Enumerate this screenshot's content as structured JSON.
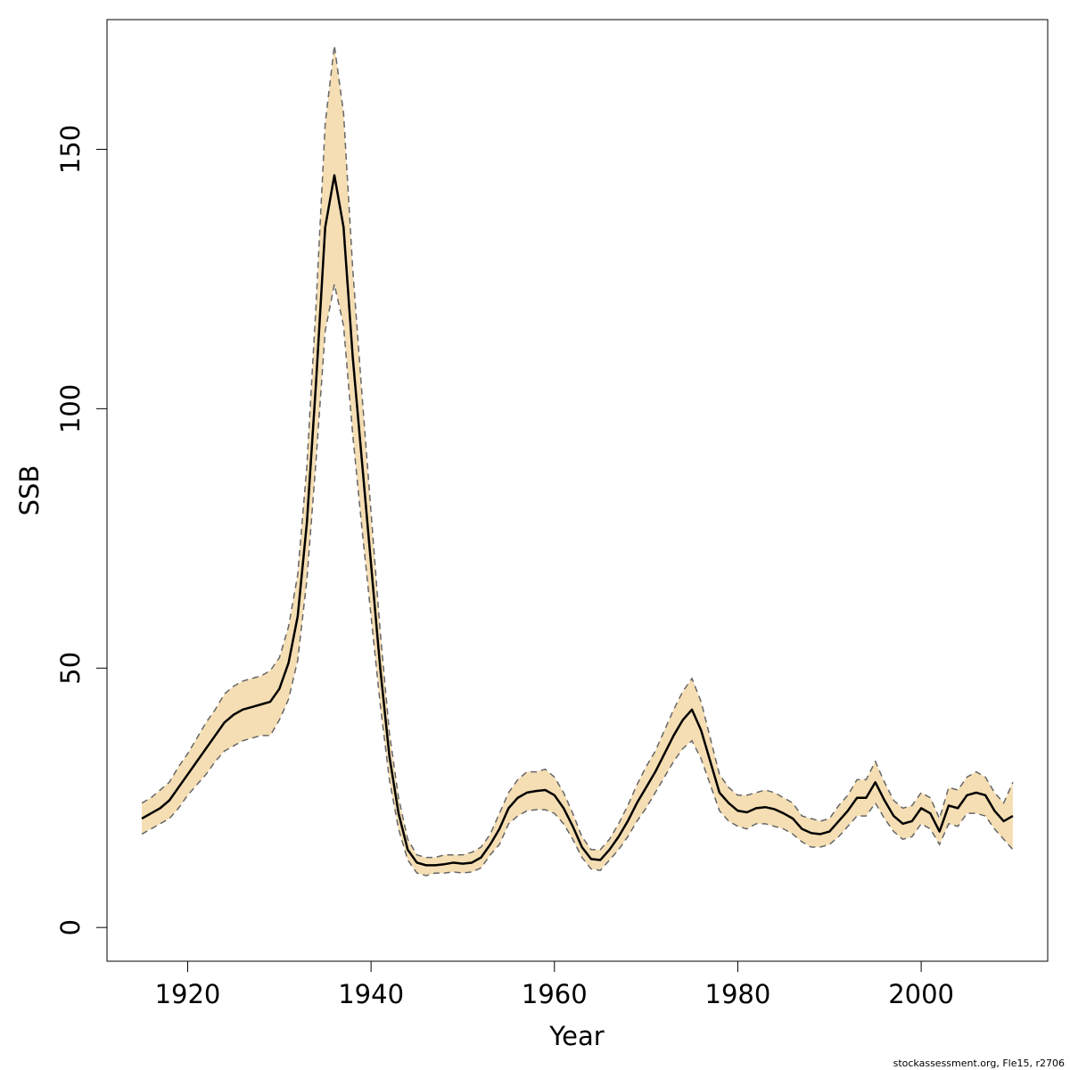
{
  "chart_data": {
    "type": "line",
    "xlabel": "Year",
    "ylabel": "SSB",
    "footer": "stockassessment.org, Fle15, r2706",
    "xlim": [
      1911.2,
      2013.8
    ],
    "ylim": [
      -6.5,
      175
    ],
    "xticks": [
      1920,
      1940,
      1960,
      1980,
      2000
    ],
    "yticks": [
      0,
      50,
      100,
      150
    ],
    "x": [
      1915,
      1916,
      1917,
      1918,
      1919,
      1920,
      1921,
      1922,
      1923,
      1924,
      1925,
      1926,
      1927,
      1928,
      1929,
      1930,
      1931,
      1932,
      1933,
      1934,
      1935,
      1936,
      1937,
      1938,
      1939,
      1940,
      1941,
      1942,
      1943,
      1944,
      1945,
      1946,
      1947,
      1948,
      1949,
      1950,
      1951,
      1952,
      1953,
      1954,
      1955,
      1956,
      1957,
      1958,
      1959,
      1960,
      1961,
      1962,
      1963,
      1964,
      1965,
      1966,
      1967,
      1968,
      1969,
      1970,
      1971,
      1972,
      1973,
      1974,
      1975,
      1976,
      1977,
      1978,
      1979,
      1980,
      1981,
      1982,
      1983,
      1984,
      1985,
      1986,
      1987,
      1988,
      1989,
      1990,
      1991,
      1992,
      1993,
      1994,
      1995,
      1996,
      1997,
      1998,
      1999,
      2000,
      2001,
      2002,
      2003,
      2004,
      2005,
      2006,
      2007,
      2008,
      2009,
      2010
    ],
    "series": [
      {
        "color": "#000000",
        "values": [
          21,
          22,
          23,
          24.5,
          27,
          29.5,
          32,
          34.5,
          37,
          39.5,
          41,
          42,
          42.5,
          43,
          43.5,
          46,
          51,
          60,
          78,
          105,
          135,
          145,
          135,
          110,
          90,
          70,
          50,
          33,
          22,
          15,
          12.5,
          12,
          12,
          12.2,
          12.5,
          12.3,
          12.5,
          13.5,
          16,
          19,
          23,
          25,
          26,
          26.3,
          26.5,
          25.5,
          23,
          19.5,
          15.5,
          13.2,
          13,
          15,
          17.5,
          20.5,
          24,
          27,
          30,
          33.5,
          37,
          40,
          42,
          38,
          32,
          26,
          24,
          22.5,
          22.2,
          23,
          23.2,
          22.8,
          22,
          21,
          19,
          18.2,
          18,
          18.5,
          20.5,
          22.5,
          25,
          25,
          28,
          24.5,
          21.5,
          20,
          20.5,
          23,
          22,
          18.5,
          23.5,
          23,
          25.5,
          26,
          25.5,
          22.5,
          20.5,
          21.5
        ]
      }
    ],
    "band": {
      "color": "#f5deb3",
      "line_color": "#666666",
      "upper": [
        24,
        25,
        26.5,
        28,
        31,
        33.5,
        36.5,
        39.5,
        42,
        45,
        46.5,
        47.5,
        48,
        48.5,
        49.5,
        52,
        58,
        68,
        89,
        120,
        155,
        170,
        157,
        127,
        103,
        80,
        57,
        37.5,
        25,
        17,
        14,
        13.5,
        13.5,
        14,
        14,
        14,
        14.5,
        15.5,
        18,
        22,
        26,
        28.5,
        30,
        30,
        30.5,
        29,
        26,
        22,
        17.5,
        15,
        15,
        17,
        20,
        23.5,
        27.5,
        31,
        34,
        38,
        42,
        45.5,
        48,
        43.5,
        36.5,
        29.5,
        27,
        25.5,
        25.5,
        26,
        26.5,
        26,
        25,
        24,
        21.5,
        21,
        20.5,
        21,
        23.5,
        25.5,
        28.5,
        28.5,
        32,
        28,
        24.5,
        23,
        23.5,
        26,
        25,
        21,
        27,
        26.5,
        29,
        30,
        29,
        26,
        24,
        28
      ],
      "lower": [
        18,
        19,
        20,
        21,
        23,
        25.5,
        27.5,
        29.5,
        32,
        34,
        35,
        36,
        36.5,
        37,
        37,
        40,
        44,
        51.5,
        67,
        90,
        115,
        124,
        116,
        95,
        77,
        60,
        43,
        28.5,
        19,
        13,
        10.5,
        10,
        10.5,
        10.5,
        10.7,
        10.5,
        10.7,
        11.5,
        14,
        16,
        20,
        21.5,
        22.5,
        22.7,
        22.7,
        22,
        20,
        17,
        13.5,
        11.3,
        11,
        13,
        15,
        17.5,
        20.5,
        23,
        26,
        29,
        32,
        34.5,
        36,
        32.5,
        27.5,
        22.5,
        20.5,
        19.5,
        19,
        20,
        20,
        19.5,
        19,
        18,
        16.5,
        15.5,
        15.5,
        16,
        17.5,
        19.5,
        21.5,
        21.5,
        24,
        21,
        18.5,
        17,
        17.5,
        20,
        19,
        16,
        20,
        19.5,
        22,
        22,
        21.5,
        19,
        17,
        15
      ]
    }
  }
}
